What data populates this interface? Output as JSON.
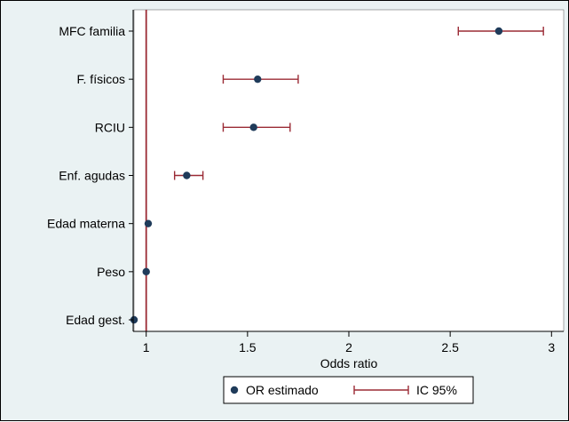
{
  "colors": {
    "background": "#eaf2f3",
    "plot_background": "#ffffff",
    "ci_color": "#9b2b35",
    "point_color": "#1f3b5a",
    "reference_line": "#9b2b35",
    "axis": "#000000"
  },
  "chart_data": {
    "type": "scatter",
    "subtype": "forest-plot",
    "title": "",
    "xlabel": "Odds ratio",
    "ylabel": "",
    "xlim": [
      0.94,
      3.06
    ],
    "x_ticks": [
      1,
      1.5,
      2,
      2.5,
      3
    ],
    "x_tick_labels": [
      "1",
      "1.5",
      "2",
      "2.5",
      "3"
    ],
    "reference_x": 1,
    "grid": false,
    "legend_position": "bottom",
    "categories": [
      "MFC familia",
      "F. físicos",
      "RCIU",
      "Enf. agudas",
      "Edad materna",
      "Peso",
      "Edad gest."
    ],
    "series": [
      {
        "name": "OR estimado",
        "values": [
          2.74,
          1.55,
          1.53,
          1.2,
          1.01,
          1.0,
          0.94
        ]
      },
      {
        "name": "IC 95%",
        "lower": [
          2.54,
          1.38,
          1.38,
          1.14,
          1.01,
          1.0,
          0.94
        ],
        "upper": [
          2.96,
          1.75,
          1.71,
          1.28,
          1.01,
          1.0,
          0.94
        ]
      }
    ]
  }
}
